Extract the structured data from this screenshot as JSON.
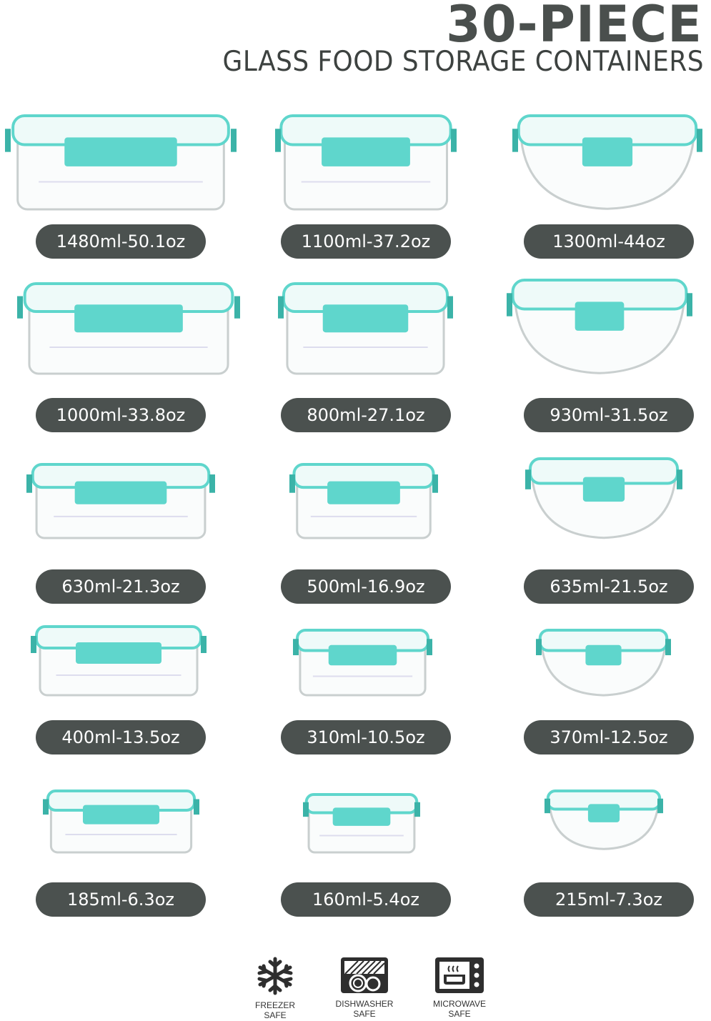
{
  "header": {
    "title": "30-PIECE",
    "subtitle": "GLASS FOOD STORAGE CONTAINERS"
  },
  "colors": {
    "lid": "#5fd6cc",
    "label_bg": "#4b514f",
    "text": "#4a4f4d"
  },
  "containers": [
    {
      "label": "1480ml-50.1oz",
      "shape": "rectangle"
    },
    {
      "label": "1100ml-37.2oz",
      "shape": "square"
    },
    {
      "label": "1300ml-44oz",
      "shape": "round"
    },
    {
      "label": "1000ml-33.8oz",
      "shape": "rectangle"
    },
    {
      "label": "800ml-27.1oz",
      "shape": "square"
    },
    {
      "label": "930ml-31.5oz",
      "shape": "round"
    },
    {
      "label": "630ml-21.3oz",
      "shape": "rectangle"
    },
    {
      "label": "500ml-16.9oz",
      "shape": "square"
    },
    {
      "label": "635ml-21.5oz",
      "shape": "round"
    },
    {
      "label": "400ml-13.5oz",
      "shape": "rectangle"
    },
    {
      "label": "310ml-10.5oz",
      "shape": "square"
    },
    {
      "label": "370ml-12.5oz",
      "shape": "round"
    },
    {
      "label": "185ml-6.3oz",
      "shape": "rectangle"
    },
    {
      "label": "160ml-5.4oz",
      "shape": "square"
    },
    {
      "label": "215ml-7.3oz",
      "shape": "round"
    }
  ],
  "badges": [
    {
      "icon": "snowflake-icon",
      "line1": "FREEZER",
      "line2": "SAFE"
    },
    {
      "icon": "dishwasher-icon",
      "line1": "DISHWASHER",
      "line2": "SAFE"
    },
    {
      "icon": "microwave-icon",
      "line1": "MICROWAVE",
      "line2": "SAFE"
    }
  ]
}
